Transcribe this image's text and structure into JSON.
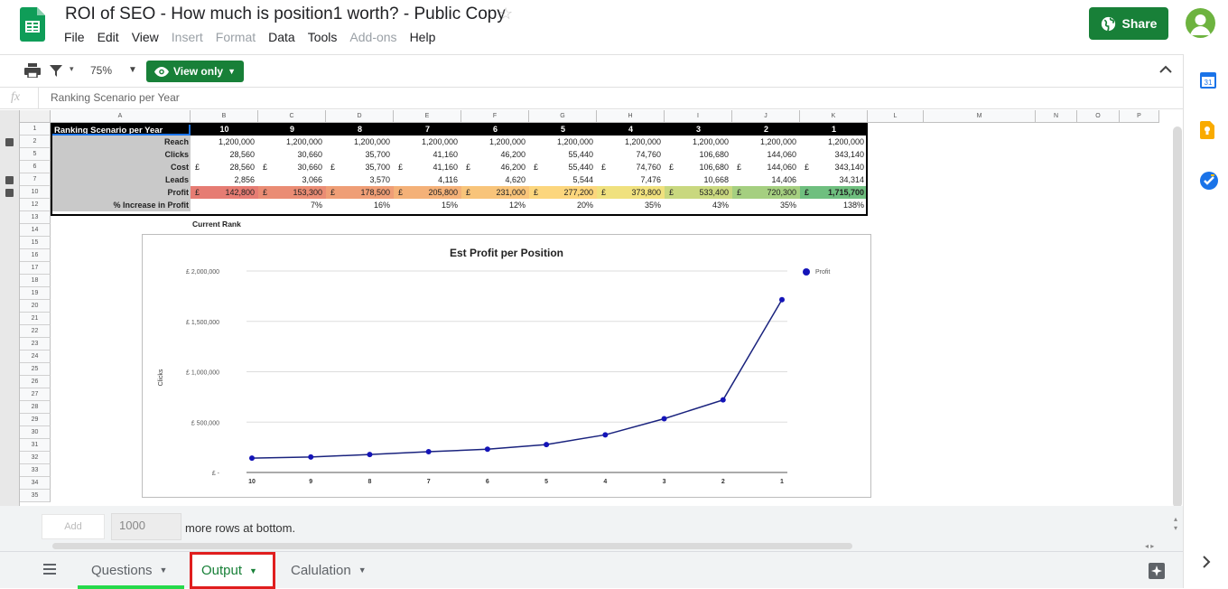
{
  "app": {
    "title": "ROI of SEO - How much is position1 worth? - Public Copy",
    "share_label": "Share"
  },
  "menu": [
    "File",
    "Edit",
    "View",
    "Insert",
    "Format",
    "Data",
    "Tools",
    "Add-ons",
    "Help"
  ],
  "menu_disabled": [
    "Insert",
    "Format",
    "Add-ons"
  ],
  "toolbar": {
    "zoom": "75%",
    "view_only": "View only"
  },
  "formula": {
    "fx": "fx",
    "value": "Ranking Scenario per Year"
  },
  "columns": [
    "A",
    "B",
    "C",
    "D",
    "E",
    "F",
    "G",
    "H",
    "I",
    "J",
    "K",
    "L",
    "M",
    "N",
    "O",
    "P"
  ],
  "rows": [
    "1",
    "2",
    "5",
    "6",
    "7",
    "10",
    "12",
    "13",
    "14",
    "15",
    "16",
    "17",
    "18",
    "19",
    "20",
    "21",
    "22",
    "23",
    "24",
    "25",
    "26",
    "27",
    "28",
    "29",
    "30",
    "31",
    "32",
    "33",
    "34",
    "35"
  ],
  "table": {
    "header_label": "Ranking Scenario per Year",
    "positions": [
      "10",
      "9",
      "8",
      "7",
      "6",
      "5",
      "4",
      "3",
      "2",
      "1"
    ],
    "rows": [
      {
        "label": "Reach",
        "pound": false,
        "values": [
          "1,200,000",
          "1,200,000",
          "1,200,000",
          "1,200,000",
          "1,200,000",
          "1,200,000",
          "1,200,000",
          "1,200,000",
          "1,200,000",
          "1,200,000"
        ]
      },
      {
        "label": "Clicks",
        "pound": false,
        "values": [
          "28,560",
          "30,660",
          "35,700",
          "41,160",
          "46,200",
          "55,440",
          "74,760",
          "106,680",
          "144,060",
          "343,140"
        ]
      },
      {
        "label": "Cost",
        "pound": true,
        "values": [
          "28,560",
          "30,660",
          "35,700",
          "41,160",
          "46,200",
          "55,440",
          "74,760",
          "106,680",
          "144,060",
          "343,140"
        ]
      },
      {
        "label": "Leads",
        "pound": false,
        "values": [
          "2,856",
          "3,066",
          "3,570",
          "4,116",
          "4,620",
          "5,544",
          "7,476",
          "10,668",
          "14,406",
          "34,314"
        ]
      },
      {
        "label": "Profit",
        "pound": true,
        "values": [
          "142,800",
          "153,300",
          "178,500",
          "205,800",
          "231,000",
          "277,200",
          "373,800",
          "533,400",
          "720,300",
          "1,715,700"
        ]
      },
      {
        "label": "% Increase in Profit",
        "pound": false,
        "values": [
          "",
          "7%",
          "16%",
          "15%",
          "12%",
          "20%",
          "35%",
          "43%",
          "35%",
          "138%"
        ]
      }
    ],
    "current_rank": "Current Rank",
    "profit_colors": [
      "#e67c73",
      "#ea8c74",
      "#ef9e76",
      "#f4b178",
      "#f8c47a",
      "#fcd67d",
      "#f0e17e",
      "#c9d87f",
      "#a5cf80",
      "#6fbf7f"
    ],
    "pound_sign": "£"
  },
  "chart_data": {
    "type": "line",
    "title": "Est Profit per Position",
    "ylabel": "Clicks",
    "xlabel": "",
    "categories": [
      "10",
      "9",
      "8",
      "7",
      "6",
      "5",
      "4",
      "3",
      "2",
      "1"
    ],
    "series": [
      {
        "name": "Profit",
        "values": [
          142800,
          153300,
          178500,
          205800,
          231000,
          277200,
          373800,
          533400,
          720300,
          1715700
        ],
        "color": "#1a237e"
      }
    ],
    "y_ticks": [
      "£ -",
      "£ 500,000",
      "£ 1,000,000",
      "£ 1,500,000",
      "£ 2,000,000"
    ],
    "ylim": [
      0,
      2000000
    ],
    "legend_position": "right",
    "grid": true
  },
  "bottom": {
    "add_label": "Add",
    "rows_value": "1000",
    "more_rows": "more rows at bottom."
  },
  "tabs": [
    {
      "label": "Questions"
    },
    {
      "label": "Output"
    },
    {
      "label": "Calulation"
    }
  ]
}
